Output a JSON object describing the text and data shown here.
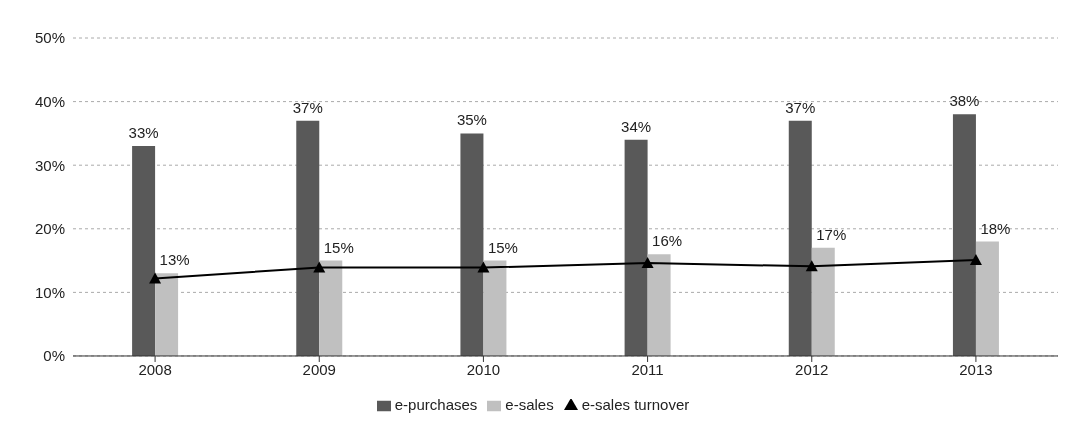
{
  "chart_data": {
    "type": "bar",
    "categories": [
      "2008",
      "2009",
      "2010",
      "2011",
      "2012",
      "2013"
    ],
    "series": [
      {
        "name": "e-purchases",
        "color": "#595959",
        "values": [
          33,
          37,
          35,
          34,
          37,
          38
        ],
        "value_labels": [
          "33%",
          "37%",
          "35%",
          "34%",
          "37%",
          "38%"
        ]
      },
      {
        "name": "e-sales",
        "color": "#c0c0c0",
        "values": [
          13,
          15,
          15,
          16,
          17,
          18
        ],
        "value_labels": [
          "13%",
          "15%",
          "15%",
          "16%",
          "17%",
          "18%"
        ]
      },
      {
        "name": "e-sales turnover",
        "type": "line",
        "color": "#000000",
        "values": [
          12.2,
          13.9,
          13.9,
          14.6,
          14.1,
          15.1
        ],
        "marker": "triangle"
      }
    ],
    "ylim": [
      0,
      50
    ],
    "yticks": [
      {
        "value": 0,
        "label": "0%"
      },
      {
        "value": 10,
        "label": "10%"
      },
      {
        "value": 20,
        "label": "20%"
      },
      {
        "value": 30,
        "label": "30%"
      },
      {
        "value": 40,
        "label": "40%"
      },
      {
        "value": 50,
        "label": "50%"
      }
    ],
    "grid": "y",
    "legend": "bottom"
  }
}
